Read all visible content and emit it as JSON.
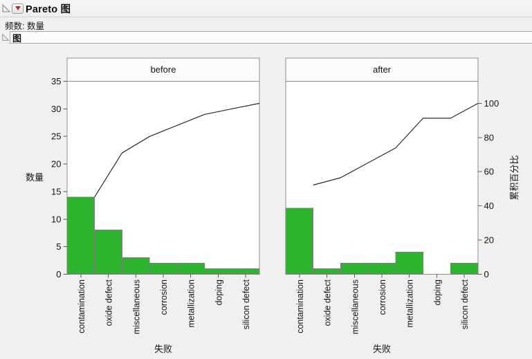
{
  "report": {
    "title": "Pareto 图",
    "frequency_note": "频数: 数量",
    "graph_section_title": "图"
  },
  "icons": {
    "outline_open_title": "outline-open-triangle",
    "outline_open_graph": "outline-open-triangle",
    "red_triangle_menu": "red-triangle-menu"
  },
  "chart_data": {
    "type": "bar",
    "subtype": "pareto-with-cumulative-line",
    "categories": [
      "contamination",
      "oxide defect",
      "miscellaneous",
      "corrosion",
      "metallization",
      "doping",
      "silicon defect"
    ],
    "panels": [
      {
        "label": "before",
        "counts": [
          14,
          8,
          3,
          2,
          2,
          1,
          1
        ],
        "cumulative_percent": [
          45.2,
          71.0,
          80.6,
          87.1,
          93.5,
          96.8,
          100
        ]
      },
      {
        "label": "after",
        "counts": [
          12,
          1,
          2,
          2,
          4,
          0,
          2
        ],
        "cumulative_percent": [
          52.2,
          56.5,
          65.2,
          73.9,
          91.3,
          91.3,
          100
        ]
      }
    ],
    "left_axis": {
      "label": "数量",
      "ticks": [
        0,
        5,
        10,
        15,
        20,
        25,
        30,
        35
      ],
      "min": 0,
      "max": 35
    },
    "right_axis": {
      "label": "累积百分比",
      "ticks": [
        0,
        20,
        40,
        60,
        80,
        100
      ],
      "min": 0,
      "max": 100,
      "count_at_100_percent": 31
    },
    "x_axis_label": "失败",
    "grid": false,
    "legend": false,
    "colors": {
      "bar_fill": "#2cb42c",
      "bar_stroke": "#7f7f7f",
      "cumulative_line": "#2a2a2a",
      "frame": "#909090",
      "panel_header_fill": "#fbfbfb",
      "text": "#141414"
    }
  }
}
